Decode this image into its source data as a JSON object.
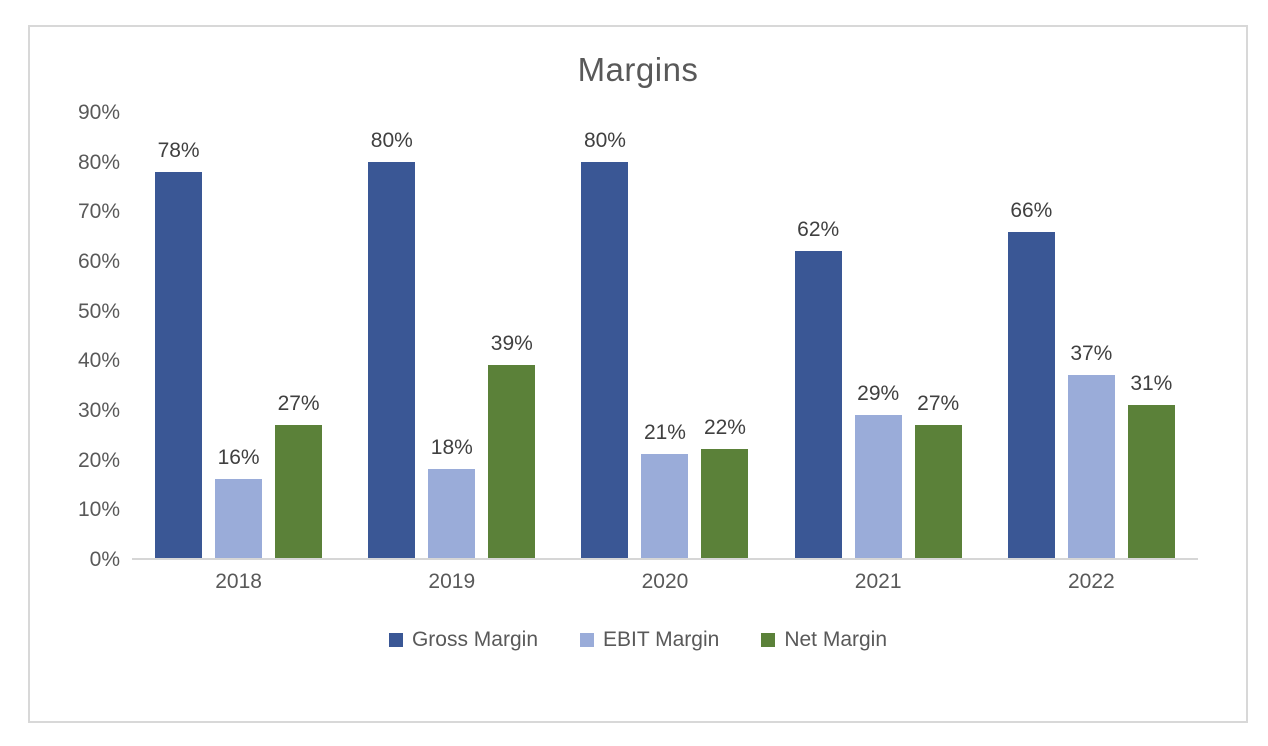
{
  "chart_data": {
    "type": "bar",
    "title": "Margins",
    "categories": [
      "2018",
      "2019",
      "2020",
      "2021",
      "2022"
    ],
    "series": [
      {
        "name": "Gross Margin",
        "color": "#3a5795",
        "values": [
          78,
          80,
          80,
          62,
          66
        ]
      },
      {
        "name": "EBIT Margin",
        "color": "#9aacd9",
        "values": [
          16,
          18,
          21,
          29,
          37
        ]
      },
      {
        "name": "Net Margin",
        "color": "#5b8139",
        "values": [
          27,
          39,
          22,
          27,
          31
        ]
      }
    ],
    "value_suffix": "%",
    "data_labels": true,
    "y_ticks": [
      "0%",
      "10%",
      "20%",
      "30%",
      "40%",
      "50%",
      "60%",
      "70%",
      "80%",
      "90%"
    ],
    "ylim": [
      0,
      90
    ],
    "xlabel": "",
    "ylabel": "",
    "grid": false,
    "legend_position": "bottom",
    "colors": {
      "title_text": "#595959",
      "axis_text": "#595959",
      "data_label_text": "#404040",
      "axis_line": "#d6d6d6",
      "frame_border": "#d8d8d8",
      "background": "#ffffff"
    }
  }
}
